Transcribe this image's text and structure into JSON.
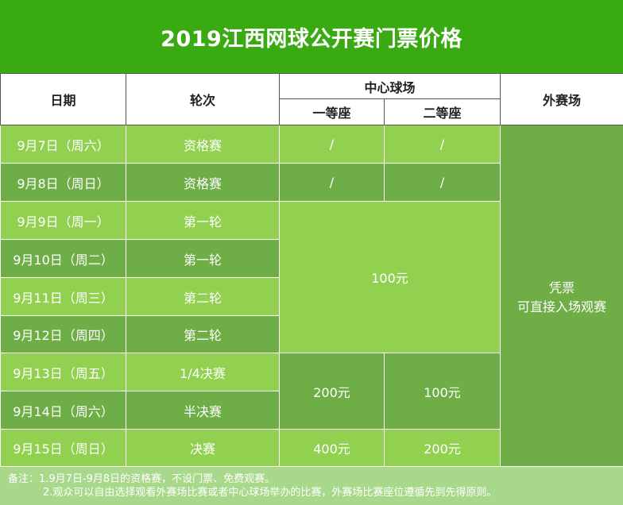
{
  "title": "2019江西网球公开赛门票价格",
  "headers": {
    "date": "日期",
    "round": "轮次",
    "center_court": "中心球场",
    "first_class": "一等座",
    "second_class": "二等座",
    "outer_court": "外赛场"
  },
  "rows": [
    {
      "date": "9月7日（周六）",
      "round": "资格赛"
    },
    {
      "date": "9月8日（周日）",
      "round": "资格赛"
    },
    {
      "date": "9月9日（周一）",
      "round": "第一轮"
    },
    {
      "date": "9月10日（周二）",
      "round": "第一轮"
    },
    {
      "date": "9月11日（周三）",
      "round": "第二轮"
    },
    {
      "date": "9月12日（周四）",
      "round": "第二轮"
    },
    {
      "date": "9月13日（周五）",
      "round": "1/4决赛"
    },
    {
      "date": "9月14日（周六）",
      "round": "半决赛"
    },
    {
      "date": "9月15日（周日）",
      "round": "决赛"
    }
  ],
  "prices": {
    "qual_first_d1": "/",
    "qual_second_d1": "/",
    "qual_first_d2": "/",
    "qual_second_d2": "/",
    "early_rounds": "100元",
    "qf_sf_first": "200元",
    "qf_sf_second": "100元",
    "final_first": "400元",
    "final_second": "200元"
  },
  "outer_court_line1": "凭票",
  "outer_court_line2": "可直接入场观赛",
  "note_line1": "备注：1.9月7日-9月8日的资格赛，不设门票、免费观赛。",
  "note_line2": "2.观众可以自由选择观看外赛场比赛或者中心球场举办的比赛，外赛场比赛座位遵循先到先得原则。"
}
